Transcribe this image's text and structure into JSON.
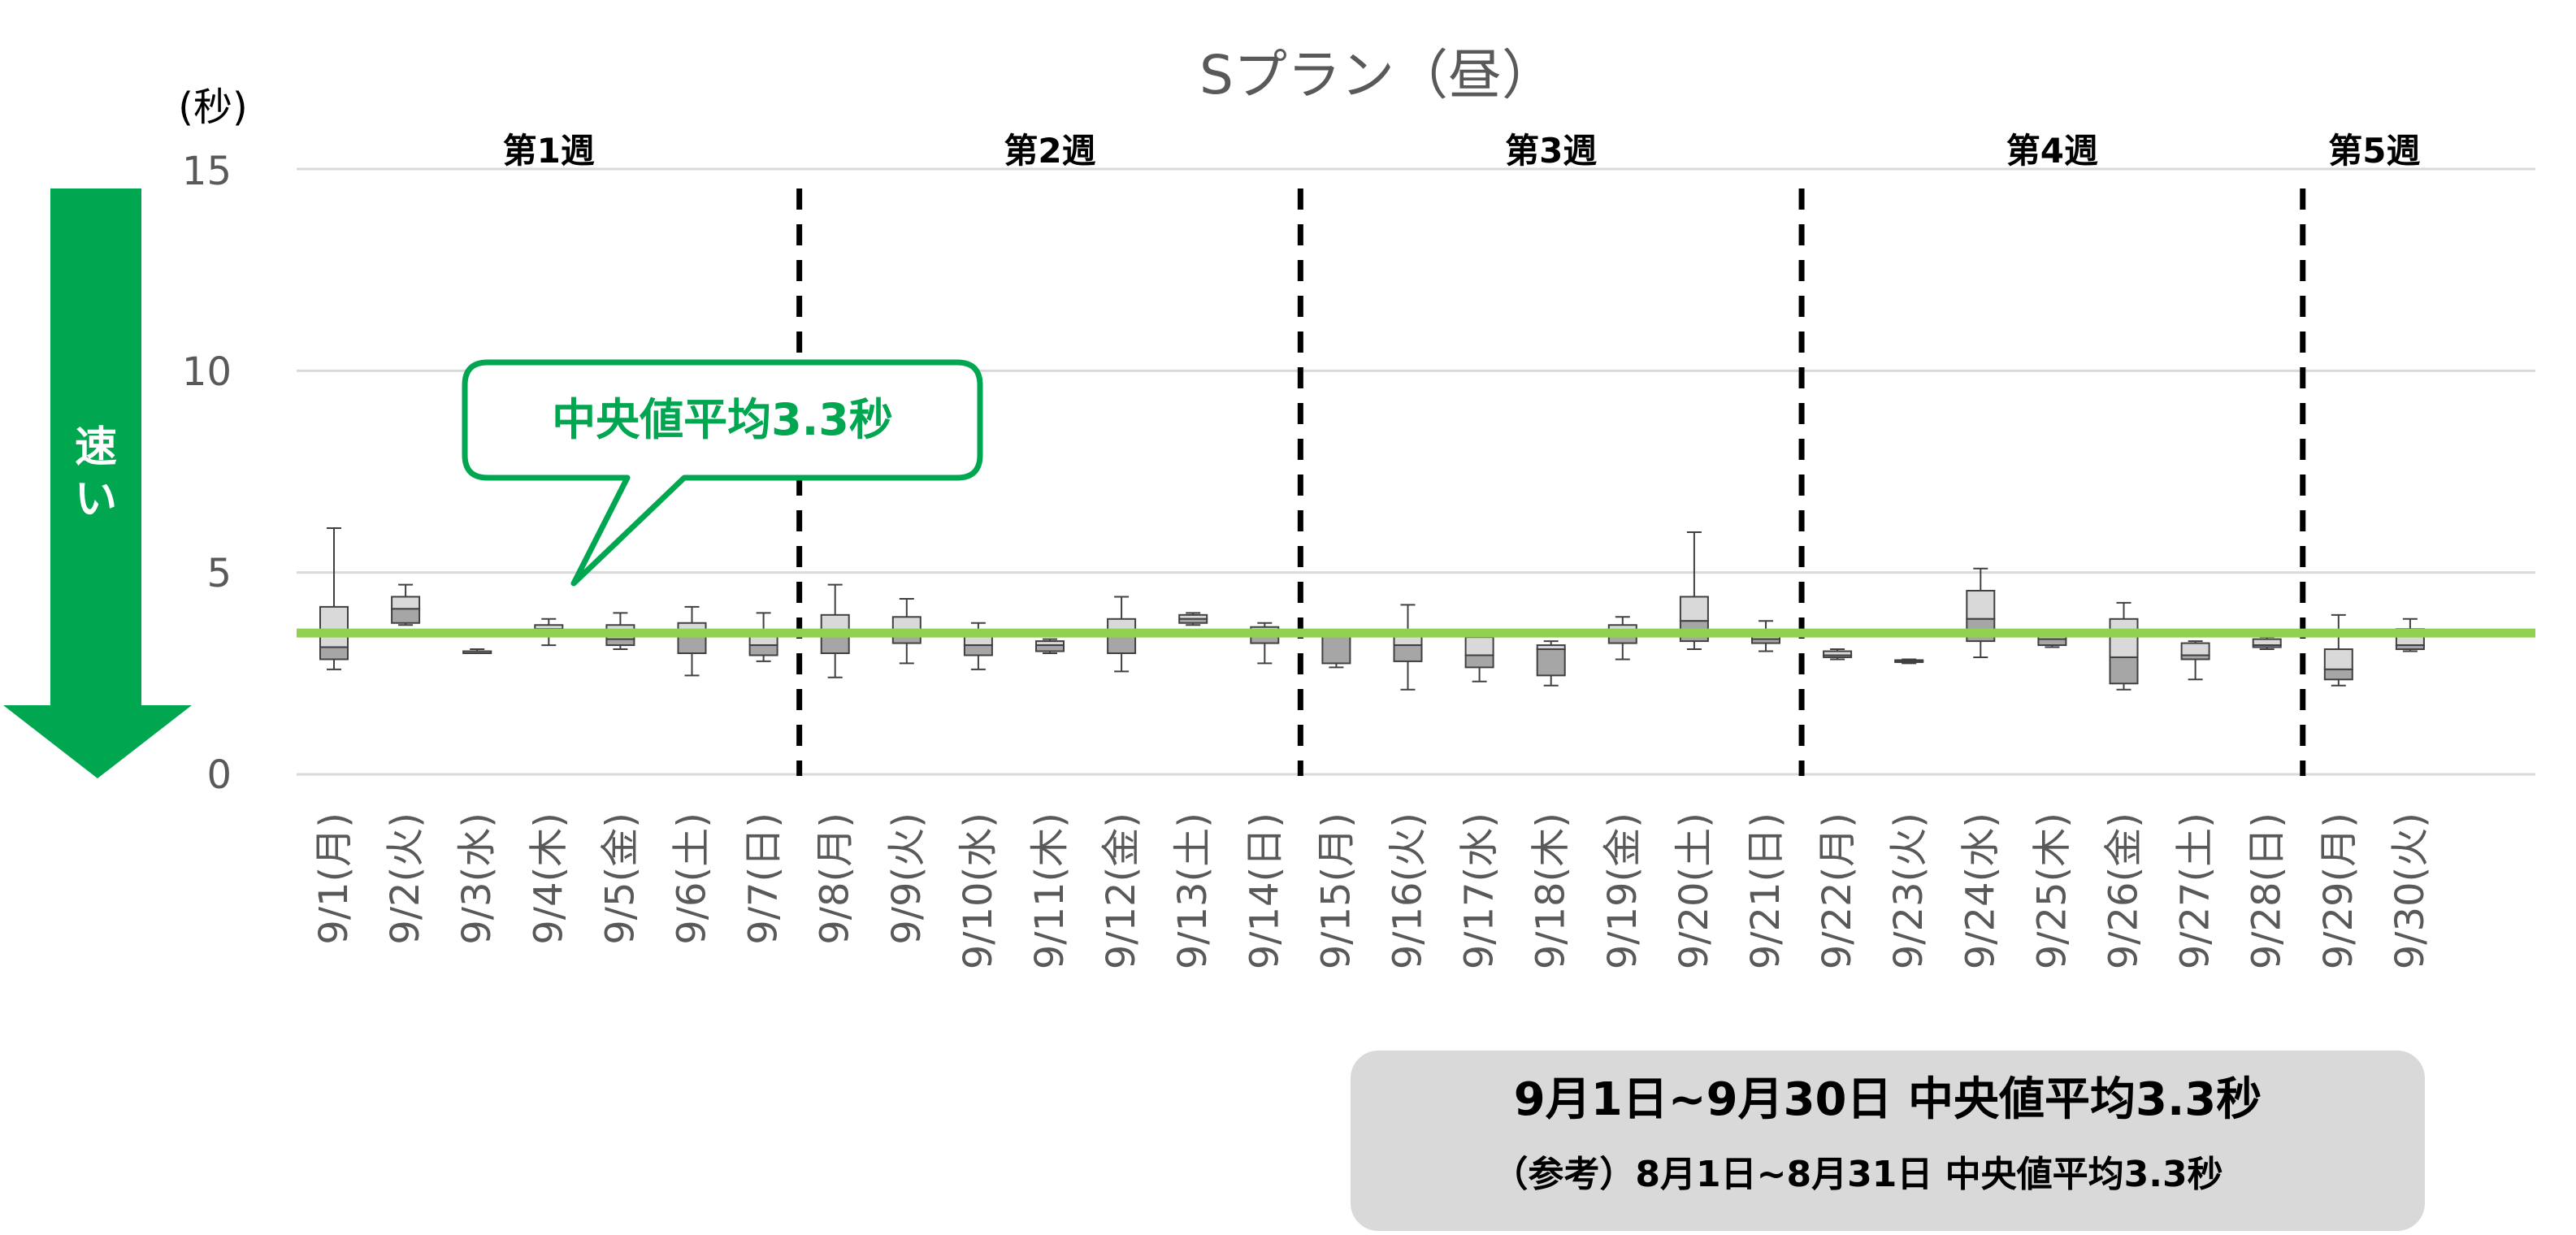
{
  "chart_data": {
    "type": "box",
    "title": "Sプラン（昼）",
    "ylabel": "(秒)",
    "ylim": [
      0,
      15
    ],
    "yticks": [
      "15",
      "10",
      "5",
      "0"
    ],
    "categories": [
      "9/1(月)",
      "9/2(火)",
      "9/3(水)",
      "9/4(木)",
      "9/5(金)",
      "9/6(土)",
      "9/7(日)",
      "9/8(月)",
      "9/9(火)",
      "9/10(水)",
      "9/11(木)",
      "9/12(金)",
      "9/13(土)",
      "9/14(日)",
      "9/15(月)",
      "9/16(火)",
      "9/17(水)",
      "9/18(木)",
      "9/19(金)",
      "9/20(土)",
      "9/21(日)",
      "9/22(月)",
      "9/23(火)",
      "9/24(水)",
      "9/25(木)",
      "9/26(金)",
      "9/27(土)",
      "9/28(日)",
      "9/29(月)",
      "9/30(火)"
    ],
    "boxes": [
      {
        "min": 2.6,
        "q1": 2.85,
        "median": 3.15,
        "q3": 4.15,
        "max": 6.1
      },
      {
        "min": 3.7,
        "q1": 3.75,
        "median": 4.1,
        "q3": 4.4,
        "max": 4.7
      },
      {
        "min": 3.0,
        "q1": 3.0,
        "median": 3.05,
        "q3": 3.05,
        "max": 3.1
      },
      {
        "min": 3.2,
        "q1": 3.45,
        "median": 3.6,
        "q3": 3.7,
        "max": 3.85
      },
      {
        "min": 3.1,
        "q1": 3.2,
        "median": 3.35,
        "q3": 3.7,
        "max": 4.0
      },
      {
        "min": 2.45,
        "q1": 3.0,
        "median": 3.5,
        "q3": 3.75,
        "max": 4.15
      },
      {
        "min": 2.8,
        "q1": 2.95,
        "median": 3.2,
        "q3": 3.5,
        "max": 4.0
      },
      {
        "min": 2.4,
        "q1": 3.0,
        "median": 3.5,
        "q3": 3.95,
        "max": 4.7
      },
      {
        "min": 2.75,
        "q1": 3.25,
        "median": 3.55,
        "q3": 3.9,
        "max": 4.35
      },
      {
        "min": 2.6,
        "q1": 2.95,
        "median": 3.2,
        "q3": 3.5,
        "max": 3.75
      },
      {
        "min": 3.0,
        "q1": 3.05,
        "median": 3.2,
        "q3": 3.3,
        "max": 3.35
      },
      {
        "min": 2.55,
        "q1": 3.0,
        "median": 3.5,
        "q3": 3.85,
        "max": 4.4
      },
      {
        "min": 3.7,
        "q1": 3.75,
        "median": 3.85,
        "q3": 3.95,
        "max": 4.0
      },
      {
        "min": 2.75,
        "q1": 3.25,
        "median": 3.5,
        "q3": 3.65,
        "max": 3.75
      },
      {
        "min": 2.65,
        "q1": 2.75,
        "median": 3.5,
        "q3": 3.5,
        "max": 3.5
      },
      {
        "min": 2.1,
        "q1": 2.8,
        "median": 3.2,
        "q3": 3.45,
        "max": 4.2
      },
      {
        "min": 2.3,
        "q1": 2.65,
        "median": 2.95,
        "q3": 3.4,
        "max": 3.45
      },
      {
        "min": 2.2,
        "q1": 2.45,
        "median": 3.1,
        "q3": 3.2,
        "max": 3.3
      },
      {
        "min": 2.85,
        "q1": 3.25,
        "median": 3.45,
        "q3": 3.7,
        "max": 3.9
      },
      {
        "min": 3.1,
        "q1": 3.3,
        "median": 3.8,
        "q3": 4.4,
        "max": 6.0
      },
      {
        "min": 3.05,
        "q1": 3.25,
        "median": 3.35,
        "q3": 3.55,
        "max": 3.8
      },
      {
        "min": 2.85,
        "q1": 2.9,
        "median": 2.95,
        "q3": 3.05,
        "max": 3.1
      },
      {
        "min": 2.75,
        "q1": 2.78,
        "median": 2.8,
        "q3": 2.83,
        "max": 2.85
      },
      {
        "min": 2.9,
        "q1": 3.3,
        "median": 3.85,
        "q3": 4.55,
        "max": 5.1
      },
      {
        "min": 3.15,
        "q1": 3.2,
        "median": 3.35,
        "q3": 3.45,
        "max": 3.5
      },
      {
        "min": 2.1,
        "q1": 2.25,
        "median": 2.9,
        "q3": 3.85,
        "max": 4.25
      },
      {
        "min": 2.35,
        "q1": 2.85,
        "median": 2.95,
        "q3": 3.25,
        "max": 3.3
      },
      {
        "min": 3.1,
        "q1": 3.15,
        "median": 3.2,
        "q3": 3.35,
        "max": 3.4
      },
      {
        "min": 2.2,
        "q1": 2.35,
        "median": 2.6,
        "q3": 3.1,
        "max": 3.95
      },
      {
        "min": 3.05,
        "q1": 3.1,
        "median": 3.2,
        "q3": 3.6,
        "max": 3.85
      }
    ],
    "reference_line": {
      "value": 3.5,
      "color": "#92d050"
    },
    "weeks": [
      {
        "label": "第1週",
        "start": 0,
        "end": 6
      },
      {
        "label": "第2週",
        "start": 7,
        "end": 13
      },
      {
        "label": "第3週",
        "start": 14,
        "end": 20
      },
      {
        "label": "第4週",
        "start": 21,
        "end": 27
      },
      {
        "label": "第5週",
        "start": 28,
        "end": 29
      }
    ],
    "week_dividers_after": [
      6,
      13,
      20,
      27
    ],
    "grid": true
  },
  "callout": {
    "text": "中央値平均3.3秒",
    "color": "#00a650"
  },
  "speed_arrow": {
    "text_lines": [
      "速",
      "い"
    ],
    "color": "#00a650"
  },
  "summary": {
    "main": "9月1日~9月30日 中央値平均3.3秒",
    "reference": "（参考）8月1日~8月31日 中央値平均3.3秒"
  },
  "colors": {
    "box_upper": "#d9d9d9",
    "box_lower": "#a6a6a6",
    "grid": "#d9d9d9",
    "summary_bg": "#d9d9d9"
  }
}
